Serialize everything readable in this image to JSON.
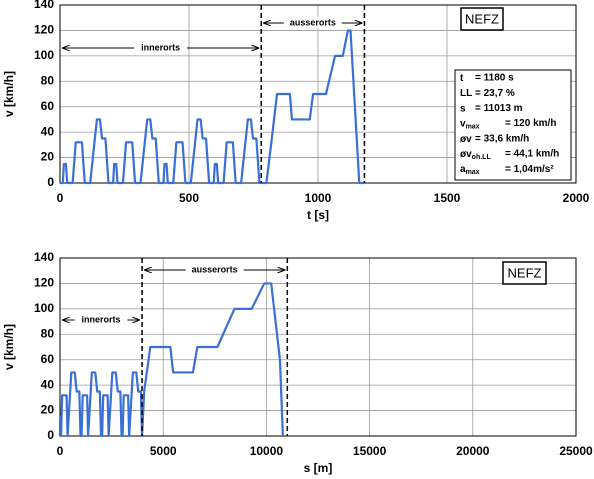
{
  "chart_data": [
    {
      "type": "line",
      "xlabel": "t [s]",
      "ylabel": "v [km/h]",
      "badge": "NEFZ",
      "xlim": [
        0,
        2000
      ],
      "xticks": [
        0,
        500,
        1000,
        1500,
        2000
      ],
      "ylim": [
        0,
        140
      ],
      "yticks": [
        0,
        20,
        40,
        60,
        80,
        100,
        120,
        140
      ],
      "grid": true,
      "x": [
        0,
        11,
        15,
        23,
        28,
        49,
        61,
        85,
        96,
        117,
        143,
        155,
        163,
        176,
        188,
        195,
        206,
        210,
        218,
        223,
        244,
        256,
        280,
        291,
        312,
        338,
        350,
        358,
        371,
        383,
        390,
        401,
        405,
        413,
        418,
        439,
        451,
        475,
        486,
        507,
        533,
        545,
        553,
        566,
        578,
        585,
        596,
        600,
        608,
        613,
        634,
        646,
        670,
        681,
        702,
        728,
        740,
        748,
        761,
        773,
        780,
        800,
        821,
        841,
        891,
        899,
        968,
        981,
        1031,
        1066,
        1096,
        1116,
        1126,
        1143,
        1160,
        1180
      ],
      "series": [
        {
          "color": "#3b6fd8",
          "values": [
            0,
            0,
            15,
            15,
            0,
            0,
            32,
            32,
            0,
            0,
            50,
            50,
            35,
            35,
            0,
            0,
            0,
            15,
            15,
            0,
            0,
            32,
            32,
            0,
            0,
            50,
            50,
            35,
            35,
            0,
            0,
            0,
            15,
            15,
            0,
            0,
            32,
            32,
            0,
            0,
            50,
            50,
            35,
            35,
            0,
            0,
            0,
            15,
            15,
            0,
            0,
            32,
            32,
            0,
            0,
            50,
            50,
            35,
            35,
            0,
            0,
            0,
            35,
            70,
            70,
            50,
            50,
            70,
            70,
            100,
            100,
            120,
            120,
            60,
            0,
            0
          ]
        }
      ],
      "phases": [
        {
          "name": "innerorts",
          "range": [
            0,
            780
          ]
        },
        {
          "name": "ausserorts",
          "range": [
            780,
            1180
          ]
        }
      ],
      "stats": [
        {
          "symbol": "t",
          "value": "= 1180 s"
        },
        {
          "symbol": "LL",
          "value": "= 23,7 %"
        },
        {
          "symbol": "s",
          "value": "= 11013 m"
        },
        {
          "symbol": "v",
          "sub": "max",
          "value": "= 120 km/h"
        },
        {
          "symbol": "øv",
          "value": "= 33,6 km/h"
        },
        {
          "symbol": "øv",
          "sub": "oh.LL",
          "value": "= 44,1 km/h"
        },
        {
          "symbol": "a",
          "sub": "max",
          "value": "= 1,04m/s²"
        }
      ]
    },
    {
      "type": "line",
      "xlabel": "s [m]",
      "ylabel": "v [km/h]",
      "badge": "NEFZ",
      "xlim": [
        0,
        25000
      ],
      "xticks": [
        0,
        5000,
        10000,
        15000,
        20000,
        25000
      ],
      "ylim": [
        0,
        140
      ],
      "yticks": [
        0,
        20,
        40,
        60,
        80,
        100,
        120,
        140
      ],
      "grid": true,
      "x": [
        0,
        0,
        8,
        42,
        52,
        52,
        105,
        319,
        368,
        368,
        548,
        715,
        809,
        936,
        994,
        994,
        994,
        1002,
        1036,
        1046,
        1046,
        1099,
        1313,
        1362,
        1362,
        1542,
        1709,
        1803,
        1930,
        1988,
        1988,
        1988,
        1996,
        2030,
        2040,
        2040,
        2093,
        2307,
        2356,
        2356,
        2536,
        2703,
        2797,
        2924,
        2982,
        2982,
        2982,
        2990,
        3024,
        3034,
        3034,
        3087,
        3301,
        3350,
        3350,
        3530,
        3697,
        3791,
        3918,
        3976,
        3976,
        3976,
        4078,
        4375,
        5347,
        5480,
        6439,
        6655,
        7628,
        8454,
        9287,
        9898,
        10232,
        10657,
        10798,
        10798
      ],
      "series": [
        {
          "color": "#3b6fd8",
          "values": [
            0,
            0,
            15,
            15,
            0,
            0,
            32,
            32,
            0,
            0,
            50,
            50,
            35,
            35,
            0,
            0,
            0,
            15,
            15,
            0,
            0,
            32,
            32,
            0,
            0,
            50,
            50,
            35,
            35,
            0,
            0,
            0,
            15,
            15,
            0,
            0,
            32,
            32,
            0,
            0,
            50,
            50,
            35,
            35,
            0,
            0,
            0,
            15,
            15,
            0,
            0,
            32,
            32,
            0,
            0,
            50,
            50,
            35,
            35,
            0,
            0,
            0,
            35,
            70,
            70,
            50,
            50,
            70,
            70,
            100,
            100,
            120,
            120,
            60,
            0,
            0
          ]
        }
      ],
      "phases": [
        {
          "name": "innerorts",
          "range": [
            0,
            3976
          ]
        },
        {
          "name": "ausserorts",
          "range": [
            3976,
            11013
          ]
        }
      ]
    }
  ]
}
